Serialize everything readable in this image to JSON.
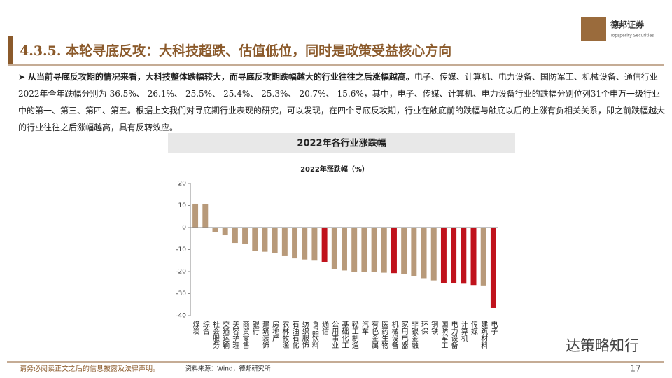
{
  "header": {
    "title": "4.3.5. 本轮寻底反攻：大科技超跌、估值低位，同时是政策受益核心方向",
    "logo_name": "德邦证券",
    "logo_sub": "Topsperity Securities"
  },
  "body": {
    "lead": "从当前寻底反攻期的情况来看，大科技整体跌幅较大，而寻底反攻期跌幅越大的行业往往之后涨幅越高。",
    "text": "电子、传媒、计算机、电力设备、国防军工、机械设备、通信行业2022年全年跌幅分别为-36.5%、-26.1%、-25.5%、-25.4%、-25.3%、-20.7%、-15.6%，其中，电子、传媒、计算机、电力设备行业的跌幅分别位列31个申万一级行业中的第一、第三、第四、第五。根据上文我们对寻底期行业表现的研究，可以发现，在四个寻底反攻期，行业在触底前的跌幅与触底以后的上涨有负相关关系，即之前跌幅越大的行业往往之后涨幅越高，具有反转效应。"
  },
  "chart_data": {
    "type": "bar",
    "box_title": "2022年各行业涨跌幅",
    "title": "2022年涨跌幅（%）",
    "categories": [
      "煤炭",
      "综合",
      "社会服务",
      "交通运输",
      "美容护理",
      "商贸零售",
      "银行",
      "建筑装饰",
      "房地产",
      "农林牧渔",
      "石油石化",
      "纺织服饰",
      "食品饮料",
      "通信",
      "公用事业",
      "基础化工",
      "轻工制造",
      "汽车",
      "有色金属",
      "医药生物",
      "机械设备",
      "家用电器",
      "非银金融",
      "环保",
      "钢铁",
      "国防军工",
      "电力设备",
      "计算机",
      "传媒",
      "建筑材料",
      "电子"
    ],
    "values": [
      10.8,
      10.5,
      -2,
      -3.5,
      -7,
      -7.5,
      -10.5,
      -11,
      -11.5,
      -13,
      -14,
      -14.5,
      -15,
      -15.6,
      -19,
      -19.5,
      -20,
      -20,
      -20,
      -20.5,
      -20.7,
      -21,
      -22,
      -23,
      -24,
      -25.3,
      -25.4,
      -25.5,
      -26.1,
      -26.3,
      -36.5
    ],
    "colors": [
      "#b89a7a",
      "#b89a7a",
      "#b89a7a",
      "#b89a7a",
      "#b89a7a",
      "#b89a7a",
      "#b89a7a",
      "#b89a7a",
      "#b89a7a",
      "#b89a7a",
      "#b89a7a",
      "#b89a7a",
      "#b89a7a",
      "#c0121c",
      "#b89a7a",
      "#b89a7a",
      "#b89a7a",
      "#b89a7a",
      "#b89a7a",
      "#b89a7a",
      "#c0121c",
      "#b89a7a",
      "#b89a7a",
      "#b89a7a",
      "#b89a7a",
      "#c0121c",
      "#c0121c",
      "#c0121c",
      "#c0121c",
      "#b89a7a",
      "#c0121c"
    ],
    "ylim": [
      -40,
      20
    ],
    "yticks": [
      20,
      10,
      0,
      -10,
      -20,
      -30,
      -40
    ]
  },
  "footer": {
    "disclaimer": "请务必阅读正文之后的信息披露及法律声明。",
    "source": "资料来源：Wind，德邦研究所",
    "page": "17",
    "watermark": "达策略知行"
  }
}
